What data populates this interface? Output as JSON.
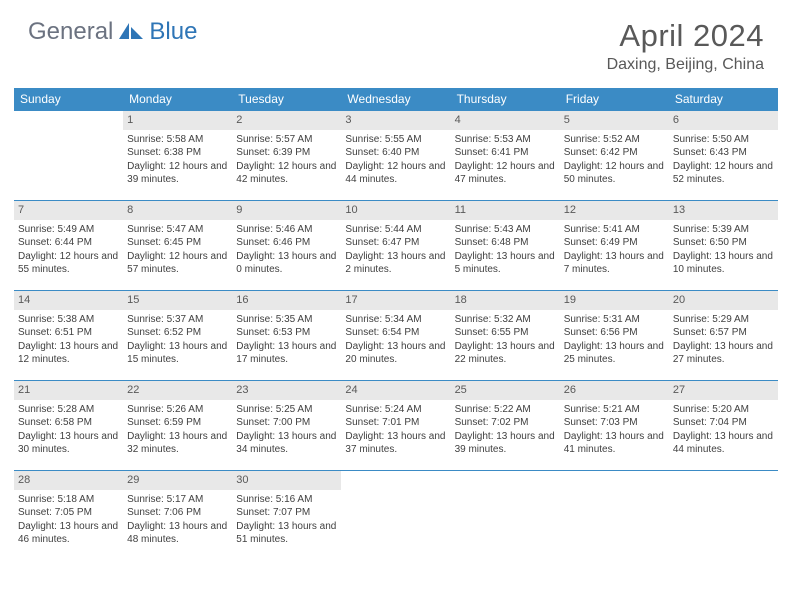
{
  "colors": {
    "header_bg": "#3b8bc5",
    "rule": "#3b8bc5",
    "daynum_bg": "#e8e8e8",
    "text": "#404040",
    "title": "#595959",
    "logo_gray": "#6b7280",
    "logo_blue": "#2e75b6"
  },
  "logo": {
    "part1": "General",
    "part2": "Blue"
  },
  "title": "April 2024",
  "location": "Daxing, Beijing, China",
  "weekdays": [
    "Sunday",
    "Monday",
    "Tuesday",
    "Wednesday",
    "Thursday",
    "Friday",
    "Saturday"
  ],
  "weeks": [
    [
      null,
      {
        "n": "1",
        "sr": "5:58 AM",
        "ss": "6:38 PM",
        "dl": "12 hours and 39 minutes."
      },
      {
        "n": "2",
        "sr": "5:57 AM",
        "ss": "6:39 PM",
        "dl": "12 hours and 42 minutes."
      },
      {
        "n": "3",
        "sr": "5:55 AM",
        "ss": "6:40 PM",
        "dl": "12 hours and 44 minutes."
      },
      {
        "n": "4",
        "sr": "5:53 AM",
        "ss": "6:41 PM",
        "dl": "12 hours and 47 minutes."
      },
      {
        "n": "5",
        "sr": "5:52 AM",
        "ss": "6:42 PM",
        "dl": "12 hours and 50 minutes."
      },
      {
        "n": "6",
        "sr": "5:50 AM",
        "ss": "6:43 PM",
        "dl": "12 hours and 52 minutes."
      }
    ],
    [
      {
        "n": "7",
        "sr": "5:49 AM",
        "ss": "6:44 PM",
        "dl": "12 hours and 55 minutes."
      },
      {
        "n": "8",
        "sr": "5:47 AM",
        "ss": "6:45 PM",
        "dl": "12 hours and 57 minutes."
      },
      {
        "n": "9",
        "sr": "5:46 AM",
        "ss": "6:46 PM",
        "dl": "13 hours and 0 minutes."
      },
      {
        "n": "10",
        "sr": "5:44 AM",
        "ss": "6:47 PM",
        "dl": "13 hours and 2 minutes."
      },
      {
        "n": "11",
        "sr": "5:43 AM",
        "ss": "6:48 PM",
        "dl": "13 hours and 5 minutes."
      },
      {
        "n": "12",
        "sr": "5:41 AM",
        "ss": "6:49 PM",
        "dl": "13 hours and 7 minutes."
      },
      {
        "n": "13",
        "sr": "5:39 AM",
        "ss": "6:50 PM",
        "dl": "13 hours and 10 minutes."
      }
    ],
    [
      {
        "n": "14",
        "sr": "5:38 AM",
        "ss": "6:51 PM",
        "dl": "13 hours and 12 minutes."
      },
      {
        "n": "15",
        "sr": "5:37 AM",
        "ss": "6:52 PM",
        "dl": "13 hours and 15 minutes."
      },
      {
        "n": "16",
        "sr": "5:35 AM",
        "ss": "6:53 PM",
        "dl": "13 hours and 17 minutes."
      },
      {
        "n": "17",
        "sr": "5:34 AM",
        "ss": "6:54 PM",
        "dl": "13 hours and 20 minutes."
      },
      {
        "n": "18",
        "sr": "5:32 AM",
        "ss": "6:55 PM",
        "dl": "13 hours and 22 minutes."
      },
      {
        "n": "19",
        "sr": "5:31 AM",
        "ss": "6:56 PM",
        "dl": "13 hours and 25 minutes."
      },
      {
        "n": "20",
        "sr": "5:29 AM",
        "ss": "6:57 PM",
        "dl": "13 hours and 27 minutes."
      }
    ],
    [
      {
        "n": "21",
        "sr": "5:28 AM",
        "ss": "6:58 PM",
        "dl": "13 hours and 30 minutes."
      },
      {
        "n": "22",
        "sr": "5:26 AM",
        "ss": "6:59 PM",
        "dl": "13 hours and 32 minutes."
      },
      {
        "n": "23",
        "sr": "5:25 AM",
        "ss": "7:00 PM",
        "dl": "13 hours and 34 minutes."
      },
      {
        "n": "24",
        "sr": "5:24 AM",
        "ss": "7:01 PM",
        "dl": "13 hours and 37 minutes."
      },
      {
        "n": "25",
        "sr": "5:22 AM",
        "ss": "7:02 PM",
        "dl": "13 hours and 39 minutes."
      },
      {
        "n": "26",
        "sr": "5:21 AM",
        "ss": "7:03 PM",
        "dl": "13 hours and 41 minutes."
      },
      {
        "n": "27",
        "sr": "5:20 AM",
        "ss": "7:04 PM",
        "dl": "13 hours and 44 minutes."
      }
    ],
    [
      {
        "n": "28",
        "sr": "5:18 AM",
        "ss": "7:05 PM",
        "dl": "13 hours and 46 minutes."
      },
      {
        "n": "29",
        "sr": "5:17 AM",
        "ss": "7:06 PM",
        "dl": "13 hours and 48 minutes."
      },
      {
        "n": "30",
        "sr": "5:16 AM",
        "ss": "7:07 PM",
        "dl": "13 hours and 51 minutes."
      },
      null,
      null,
      null,
      null
    ]
  ],
  "labels": {
    "sunrise": "Sunrise:",
    "sunset": "Sunset:",
    "daylight": "Daylight:"
  }
}
